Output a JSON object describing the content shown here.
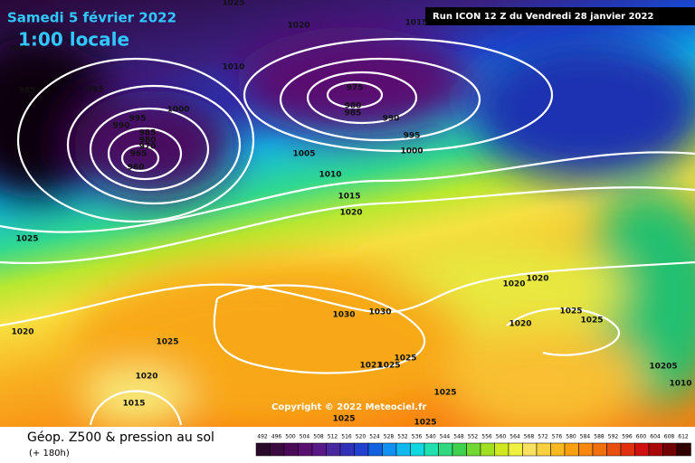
{
  "header": {
    "date": "Samedi 5 février 2022",
    "time": "1:00 locale",
    "run": "Run ICON 12 Z du Vendredi 28 janvier 2022",
    "copyright": "Copyright © 2022 Meteociel.fr"
  },
  "footer": {
    "title": "Géop. Z500 & pression au sol",
    "subtitle": "(+ 180h)",
    "scale": [
      "492",
      "496",
      "500",
      "504",
      "508",
      "512",
      "516",
      "520",
      "524",
      "528",
      "532",
      "536",
      "540",
      "544",
      "548",
      "552",
      "556",
      "560",
      "564",
      "568",
      "572",
      "576",
      "580",
      "584",
      "588",
      "592",
      "596",
      "600",
      "604",
      "608",
      "612"
    ]
  },
  "isobar_labels": [
    "1025",
    "1020",
    "1015",
    "990",
    "1010",
    "985",
    "995",
    "975",
    "980",
    "985",
    "990",
    "1000",
    "995",
    "990",
    "985",
    "980",
    "970",
    "965",
    "960",
    "995",
    "1005",
    "1000",
    "1010",
    "1015",
    "1020",
    "1025",
    "1020",
    "1020",
    "1030",
    "1030",
    "1025",
    "1025",
    "1020",
    "1020",
    "1025",
    "1025",
    "1021",
    "1025",
    "10205",
    "1020",
    "1010",
    "1015",
    "1025",
    "1025",
    "1025"
  ]
}
